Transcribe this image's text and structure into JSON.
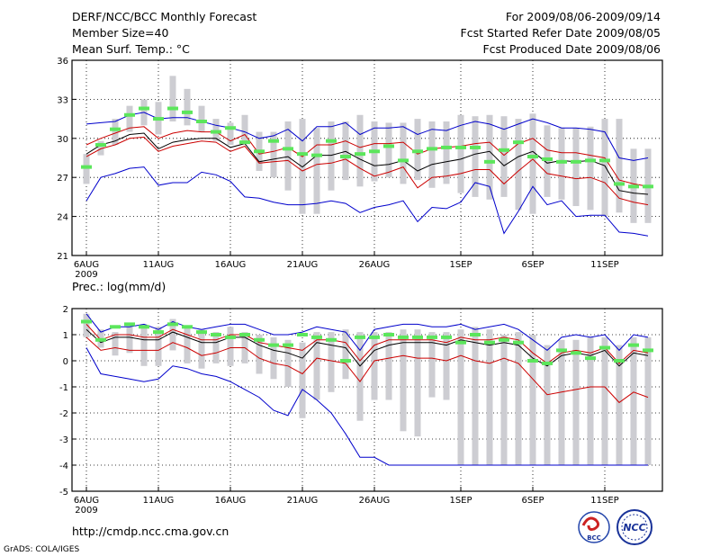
{
  "header": {
    "title": "DERF/NCC/BCC Monthly Forecast",
    "member_size": "Member Size=40",
    "variable": "Mean Surf. Temp.: °C",
    "period": "For 2009/08/06-2009/09/14",
    "started": "Fcst Started Refer Date 2009/08/05",
    "produced": "Fcst Produced Date 2009/08/06"
  },
  "footer": {
    "url": "http://cmdp.ncc.cma.gov.cn",
    "credit": "GrADS: COLA/IGES",
    "logo1_text": "BCC",
    "logo2_text": "NCC"
  },
  "colors": {
    "bar": "#cdcdd2",
    "green": "#5ce65c",
    "red": "#cc0000",
    "blue": "#0000cc",
    "black": "#000000"
  },
  "chart_data": [
    {
      "type": "line",
      "title": "Mean Surf. Temp.: °C",
      "ylim": [
        21,
        36
      ],
      "yticks": [
        21,
        24,
        27,
        30,
        33,
        36
      ],
      "xticks": [
        {
          "i": 0,
          "label": "6AUG"
        },
        {
          "i": 5,
          "label": "11AUG"
        },
        {
          "i": 10,
          "label": "16AUG"
        },
        {
          "i": 15,
          "label": "21AUG"
        },
        {
          "i": 20,
          "label": "26AUG"
        },
        {
          "i": 26,
          "label": "1SEP"
        },
        {
          "i": 31,
          "label": "6SEP"
        },
        {
          "i": 36,
          "label": "11SEP"
        }
      ],
      "xlabel_year": "2009",
      "days": 40,
      "bar_low": [
        26.5,
        28.7,
        29.5,
        30.5,
        31.0,
        30.3,
        31.3,
        31.0,
        30.5,
        29.8,
        29.5,
        29.8,
        27.5,
        27.0,
        26.0,
        24.2,
        24.2,
        26.0,
        26.8,
        26.3,
        26.7,
        27.0,
        26.5,
        26.8,
        26.2,
        26.5,
        25.8,
        25.5,
        25.3,
        25.5,
        24.5,
        24.2,
        25.5,
        25.3,
        24.8,
        24.5,
        24.0,
        24.3,
        23.5,
        23.5
      ],
      "bar_high": [
        28.8,
        29.8,
        31.5,
        32.5,
        33.0,
        32.8,
        34.8,
        33.8,
        32.5,
        31.5,
        31.2,
        31.8,
        30.5,
        30.5,
        31.3,
        31.5,
        30.8,
        31.3,
        31.3,
        31.8,
        31.3,
        31.2,
        31.2,
        31.5,
        31.3,
        31.3,
        31.8,
        31.7,
        31.8,
        31.7,
        31.5,
        31.9,
        31.0,
        30.8,
        30.8,
        30.9,
        31.5,
        31.5,
        29.2,
        29.2
      ],
      "green": [
        27.8,
        29.5,
        30.7,
        31.8,
        32.3,
        31.5,
        32.3,
        32.0,
        31.3,
        30.5,
        30.8,
        29.7,
        29.0,
        29.8,
        29.2,
        28.8,
        28.7,
        29.8,
        28.6,
        28.8,
        29.0,
        29.4,
        28.3,
        29.0,
        29.2,
        29.3,
        29.3,
        29.3,
        28.2,
        29.1,
        29.7,
        28.6,
        28.4,
        28.2,
        28.2,
        28.3,
        28.3,
        26.5,
        26.3,
        26.3
      ],
      "series": [
        {
          "name": "upper",
          "color": "#0000cc",
          "values": [
            31.1,
            31.2,
            31.3,
            31.8,
            32.0,
            31.5,
            31.6,
            31.6,
            31.3,
            31.0,
            30.8,
            30.5,
            30.0,
            30.2,
            30.7,
            29.8,
            30.9,
            30.9,
            31.2,
            30.3,
            30.8,
            30.8,
            30.9,
            30.3,
            30.7,
            30.6,
            31.0,
            31.3,
            31.1,
            30.7,
            31.1,
            31.5,
            31.2,
            30.8,
            30.8,
            30.7,
            30.5,
            28.5,
            28.3,
            28.5
          ]
        },
        {
          "name": "red_high",
          "color": "#cc0000",
          "values": [
            29.5,
            30.0,
            30.4,
            30.8,
            30.9,
            30.0,
            30.4,
            30.6,
            30.5,
            30.5,
            29.8,
            30.3,
            28.8,
            29.0,
            29.3,
            28.6,
            29.5,
            29.5,
            29.8,
            29.3,
            29.6,
            29.6,
            29.7,
            28.8,
            29.2,
            29.3,
            29.4,
            29.6,
            29.7,
            28.7,
            29.6,
            30.0,
            29.1,
            28.9,
            28.9,
            28.7,
            28.5,
            26.8,
            26.5,
            26.3
          ]
        },
        {
          "name": "ensemble_mean",
          "color": "#000000",
          "values": [
            28.8,
            29.5,
            29.8,
            30.3,
            30.4,
            29.2,
            29.7,
            29.9,
            30.0,
            30.0,
            29.3,
            29.6,
            28.2,
            28.4,
            28.6,
            27.8,
            28.7,
            28.7,
            29.0,
            28.4,
            27.9,
            28.0,
            28.3,
            27.5,
            28.0,
            28.2,
            28.4,
            28.8,
            29.0,
            27.9,
            28.6,
            29.0,
            28.1,
            28.3,
            28.2,
            28.3,
            27.9,
            26.0,
            25.8,
            25.7
          ]
        },
        {
          "name": "red_low",
          "color": "#cc0000",
          "values": [
            28.6,
            29.2,
            29.5,
            30.0,
            30.1,
            29.0,
            29.4,
            29.6,
            29.8,
            29.7,
            29.0,
            29.4,
            28.1,
            28.2,
            28.3,
            27.5,
            28.0,
            28.1,
            28.4,
            27.7,
            27.1,
            27.4,
            27.8,
            26.2,
            27.0,
            27.1,
            27.3,
            27.6,
            27.6,
            26.5,
            27.5,
            28.4,
            27.3,
            27.1,
            26.9,
            27.0,
            26.6,
            25.4,
            25.1,
            24.9
          ]
        },
        {
          "name": "lower",
          "color": "#0000cc",
          "values": [
            25.2,
            27.0,
            27.3,
            27.7,
            27.8,
            26.4,
            26.6,
            26.6,
            27.4,
            27.2,
            26.7,
            25.5,
            25.4,
            25.1,
            24.9,
            24.9,
            25.0,
            25.2,
            25.0,
            24.3,
            24.7,
            24.9,
            25.2,
            23.6,
            24.7,
            24.6,
            25.1,
            26.6,
            26.3,
            22.7,
            24.4,
            26.3,
            24.9,
            25.2,
            24.0,
            24.1,
            24.1,
            22.8,
            22.7,
            22.5
          ]
        }
      ]
    },
    {
      "type": "line",
      "title": "Prec.: log(mm/d)",
      "ylim": [
        -5,
        2
      ],
      "yticks": [
        -5,
        -4,
        -3,
        -2,
        -1,
        0,
        1,
        2
      ],
      "xticks": [
        {
          "i": 0,
          "label": "6AUG"
        },
        {
          "i": 5,
          "label": "11AUG"
        },
        {
          "i": 10,
          "label": "16AUG"
        },
        {
          "i": 15,
          "label": "21AUG"
        },
        {
          "i": 20,
          "label": "26AUG"
        },
        {
          "i": 26,
          "label": "1SEP"
        },
        {
          "i": 31,
          "label": "6SEP"
        },
        {
          "i": 36,
          "label": "11SEP"
        }
      ],
      "xlabel_year": "2009",
      "days": 40,
      "bar_low": [
        0.9,
        0.5,
        0.2,
        0.3,
        -0.2,
        -0.2,
        0.4,
        -0.1,
        -0.3,
        -0.1,
        -0.2,
        -0.1,
        -0.5,
        -0.7,
        -1.0,
        -2.2,
        -1.5,
        -1.2,
        -0.7,
        -2.3,
        -1.5,
        -1.5,
        -2.7,
        -2.9,
        -1.4,
        -1.5,
        -4.0,
        -4.0,
        -4.0,
        -4.0,
        -4.0,
        -4.0,
        -4.0,
        -4.0,
        -4.0,
        -4.0,
        -4.0,
        -4.0,
        -4.0,
        -4.0
      ],
      "bar_high": [
        1.8,
        1.2,
        1.1,
        1.3,
        1.4,
        1.3,
        1.6,
        1.3,
        1.2,
        1.1,
        1.3,
        1.1,
        1.0,
        0.9,
        0.8,
        0.7,
        1.1,
        1.1,
        1.2,
        1.1,
        1.1,
        1.1,
        1.2,
        1.2,
        1.1,
        1.1,
        1.2,
        1.3,
        1.2,
        1.0,
        1.1,
        1.0,
        0.6,
        0.8,
        0.8,
        0.9,
        0.9,
        0.6,
        0.9,
        0.9
      ],
      "green": [
        1.5,
        0.8,
        1.3,
        1.4,
        1.3,
        1.1,
        1.4,
        1.3,
        1.1,
        1.0,
        0.9,
        1.0,
        0.8,
        0.6,
        0.6,
        1.0,
        0.9,
        0.8,
        0.0,
        0.9,
        0.9,
        1.0,
        0.9,
        0.9,
        0.9,
        0.9,
        0.7,
        1.0,
        0.7,
        0.8,
        0.7,
        0.0,
        -0.1,
        0.4,
        0.3,
        0.1,
        0.5,
        0.0,
        0.6,
        0.4
      ],
      "series": [
        {
          "name": "upper",
          "color": "#0000cc",
          "values": [
            1.8,
            1.1,
            1.3,
            1.3,
            1.4,
            1.2,
            1.5,
            1.3,
            1.2,
            1.3,
            1.4,
            1.4,
            1.2,
            1.0,
            1.0,
            1.1,
            1.3,
            1.2,
            1.1,
            0.4,
            1.2,
            1.3,
            1.4,
            1.4,
            1.3,
            1.3,
            1.4,
            1.2,
            1.3,
            1.4,
            1.2,
            0.8,
            0.4,
            0.9,
            1.0,
            0.9,
            1.0,
            0.4,
            1.0,
            0.9
          ]
        },
        {
          "name": "red_high",
          "color": "#cc0000",
          "values": [
            1.4,
            0.8,
            1.0,
            1.0,
            0.9,
            0.9,
            1.2,
            1.0,
            0.8,
            0.8,
            1.0,
            1.0,
            0.7,
            0.6,
            0.5,
            0.4,
            0.8,
            0.8,
            0.7,
            0.0,
            0.6,
            0.8,
            0.8,
            0.8,
            0.8,
            0.7,
            0.9,
            0.8,
            0.8,
            0.9,
            0.8,
            0.3,
            -0.1,
            0.3,
            0.4,
            0.3,
            0.5,
            -0.1,
            0.4,
            0.3
          ]
        },
        {
          "name": "ensemble_mean",
          "color": "#000000",
          "values": [
            1.2,
            0.7,
            0.9,
            0.9,
            0.8,
            0.8,
            1.1,
            0.9,
            0.7,
            0.7,
            0.9,
            0.9,
            0.6,
            0.4,
            0.3,
            0.1,
            0.7,
            0.6,
            0.5,
            -0.2,
            0.4,
            0.6,
            0.7,
            0.7,
            0.7,
            0.6,
            0.8,
            0.7,
            0.6,
            0.7,
            0.6,
            0.1,
            -0.2,
            0.2,
            0.3,
            0.2,
            0.4,
            -0.2,
            0.3,
            0.2
          ]
        },
        {
          "name": "red_low",
          "color": "#cc0000",
          "values": [
            0.9,
            0.4,
            0.5,
            0.4,
            0.4,
            0.4,
            0.7,
            0.5,
            0.2,
            0.3,
            0.5,
            0.5,
            0.1,
            -0.1,
            -0.2,
            -0.5,
            0.1,
            0.0,
            -0.1,
            -0.8,
            0.0,
            0.1,
            0.2,
            0.1,
            0.1,
            0.0,
            0.2,
            0.0,
            -0.1,
            0.1,
            -0.1,
            -0.7,
            -1.3,
            -1.2,
            -1.1,
            -1.0,
            -1.0,
            -1.6,
            -1.2,
            -1.4
          ]
        },
        {
          "name": "lower",
          "color": "#0000cc",
          "values": [
            0.5,
            -0.5,
            -0.6,
            -0.7,
            -0.8,
            -0.7,
            -0.2,
            -0.3,
            -0.5,
            -0.6,
            -0.8,
            -1.1,
            -1.4,
            -1.9,
            -2.1,
            -1.1,
            -1.5,
            -2.0,
            -2.8,
            -3.7,
            -3.7,
            -4.0,
            -4.0,
            -4.0,
            -4.0,
            -4.0,
            -4.0,
            -4.0,
            -4.0,
            -4.0,
            -4.0,
            -4.0,
            -4.0,
            -4.0,
            -4.0,
            -4.0,
            -4.0,
            -4.0,
            -4.0,
            -4.0
          ]
        }
      ]
    }
  ]
}
